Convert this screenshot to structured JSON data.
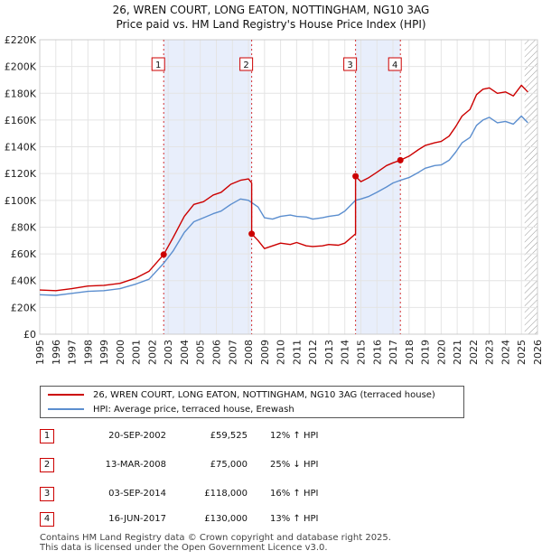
{
  "chart_data": {
    "type": "line",
    "title": "26, WREN COURT, LONG EATON, NOTTINGHAM, NG10 3AG",
    "subtitle": "Price paid vs. HM Land Registry's House Price Index (HPI)",
    "xlabel": "",
    "ylabel": "",
    "xlim": [
      1995,
      2026
    ],
    "ylim": [
      0,
      220000
    ],
    "y_ticks": [
      0,
      20000,
      40000,
      60000,
      80000,
      100000,
      120000,
      140000,
      160000,
      180000,
      200000,
      220000
    ],
    "y_tick_labels": [
      "£0",
      "£20K",
      "£40K",
      "£60K",
      "£80K",
      "£100K",
      "£120K",
      "£140K",
      "£160K",
      "£180K",
      "£200K",
      "£220K"
    ],
    "x_ticks": [
      1995,
      1996,
      1997,
      1998,
      1999,
      2000,
      2001,
      2002,
      2003,
      2004,
      2005,
      2006,
      2007,
      2008,
      2009,
      2010,
      2011,
      2012,
      2013,
      2014,
      2015,
      2016,
      2017,
      2018,
      2019,
      2020,
      2021,
      2022,
      2023,
      2024,
      2025,
      2026
    ],
    "x_tick_labels": [
      "1995",
      "1996",
      "1997",
      "1998",
      "1999",
      "2000",
      "2001",
      "2002",
      "2003",
      "2004",
      "2005",
      "2006",
      "2007",
      "2008",
      "2009",
      "2010",
      "2011",
      "2012",
      "2013",
      "2014",
      "2015",
      "2016",
      "2017",
      "2018",
      "2019",
      "2020",
      "2021",
      "2022",
      "2023",
      "2024",
      "2025",
      "2026"
    ],
    "grid": true,
    "colors": {
      "property": "#cc0000",
      "hpi": "#5b8ecf",
      "shade": "#e8eefb",
      "hatch": "#999999"
    },
    "shaded_ranges": [
      [
        2002.72,
        2008.2
      ],
      [
        2014.67,
        2017.46
      ]
    ],
    "future_hatch_from": 2025.2,
    "series": [
      {
        "name": "26, WREN COURT, LONG EATON, NOTTINGHAM, NG10 3AG (terraced house)",
        "color": "#cc0000",
        "points": [
          [
            1995.0,
            33000
          ],
          [
            1996.0,
            32500
          ],
          [
            1997.0,
            34000
          ],
          [
            1998.0,
            36000
          ],
          [
            1999.0,
            36500
          ],
          [
            2000.0,
            38000
          ],
          [
            2001.0,
            42000
          ],
          [
            2001.8,
            47000
          ],
          [
            2002.72,
            59525
          ],
          [
            2003.3,
            72000
          ],
          [
            2004.0,
            88000
          ],
          [
            2004.6,
            97000
          ],
          [
            2005.2,
            99000
          ],
          [
            2005.8,
            104000
          ],
          [
            2006.3,
            106000
          ],
          [
            2006.9,
            112000
          ],
          [
            2007.5,
            115000
          ],
          [
            2008.0,
            116000
          ],
          [
            2008.2,
            113000
          ],
          [
            2008.2,
            75000
          ],
          [
            2008.6,
            70000
          ],
          [
            2009.0,
            64000
          ],
          [
            2009.5,
            66000
          ],
          [
            2010.0,
            68000
          ],
          [
            2010.6,
            67000
          ],
          [
            2011.0,
            68500
          ],
          [
            2011.6,
            66000
          ],
          [
            2012.0,
            65500
          ],
          [
            2012.6,
            66000
          ],
          [
            2013.0,
            67000
          ],
          [
            2013.6,
            66500
          ],
          [
            2014.0,
            68000
          ],
          [
            2014.67,
            75000
          ],
          [
            2014.67,
            118000
          ],
          [
            2015.0,
            114000
          ],
          [
            2015.5,
            117000
          ],
          [
            2016.0,
            121000
          ],
          [
            2016.6,
            126000
          ],
          [
            2017.0,
            128000
          ],
          [
            2017.46,
            130000
          ],
          [
            2018.0,
            133000
          ],
          [
            2018.6,
            138000
          ],
          [
            2019.0,
            141000
          ],
          [
            2019.6,
            143000
          ],
          [
            2020.0,
            144000
          ],
          [
            2020.5,
            148000
          ],
          [
            2020.9,
            155000
          ],
          [
            2021.3,
            163000
          ],
          [
            2021.8,
            168000
          ],
          [
            2022.2,
            179000
          ],
          [
            2022.6,
            183000
          ],
          [
            2023.0,
            184000
          ],
          [
            2023.5,
            180000
          ],
          [
            2024.0,
            181000
          ],
          [
            2024.5,
            178000
          ],
          [
            2025.0,
            186000
          ],
          [
            2025.4,
            181000
          ]
        ]
      },
      {
        "name": "HPI: Average price, terraced house, Erewash",
        "color": "#5b8ecf",
        "points": [
          [
            1995.0,
            29500
          ],
          [
            1996.0,
            29000
          ],
          [
            1997.0,
            30500
          ],
          [
            1998.0,
            32000
          ],
          [
            1999.0,
            32500
          ],
          [
            2000.0,
            34000
          ],
          [
            2001.0,
            37500
          ],
          [
            2001.8,
            41000
          ],
          [
            2002.72,
            53000
          ],
          [
            2003.3,
            62000
          ],
          [
            2004.0,
            76000
          ],
          [
            2004.6,
            84000
          ],
          [
            2005.2,
            87000
          ],
          [
            2005.8,
            90000
          ],
          [
            2006.3,
            92000
          ],
          [
            2006.9,
            97000
          ],
          [
            2007.5,
            101000
          ],
          [
            2008.0,
            100000
          ],
          [
            2008.6,
            95000
          ],
          [
            2009.0,
            87000
          ],
          [
            2009.5,
            86000
          ],
          [
            2010.0,
            88000
          ],
          [
            2010.6,
            89000
          ],
          [
            2011.0,
            88000
          ],
          [
            2011.6,
            87500
          ],
          [
            2012.0,
            86000
          ],
          [
            2012.6,
            87000
          ],
          [
            2013.0,
            88000
          ],
          [
            2013.6,
            89000
          ],
          [
            2014.0,
            92000
          ],
          [
            2014.67,
            100000
          ],
          [
            2015.0,
            101000
          ],
          [
            2015.5,
            103000
          ],
          [
            2016.0,
            106000
          ],
          [
            2016.6,
            110000
          ],
          [
            2017.0,
            113000
          ],
          [
            2017.46,
            115000
          ],
          [
            2018.0,
            117000
          ],
          [
            2018.6,
            121000
          ],
          [
            2019.0,
            124000
          ],
          [
            2019.6,
            126000
          ],
          [
            2020.0,
            126500
          ],
          [
            2020.5,
            130000
          ],
          [
            2020.9,
            136000
          ],
          [
            2021.3,
            143000
          ],
          [
            2021.8,
            147000
          ],
          [
            2022.2,
            156000
          ],
          [
            2022.6,
            160000
          ],
          [
            2023.0,
            162000
          ],
          [
            2023.5,
            158000
          ],
          [
            2024.0,
            159000
          ],
          [
            2024.5,
            157000
          ],
          [
            2025.0,
            163000
          ],
          [
            2025.4,
            158000
          ]
        ]
      }
    ],
    "transactions": [
      {
        "num": "1",
        "x": 2002.72,
        "y": 59525,
        "date": "20-SEP-2002",
        "price": "£59,525",
        "hpi": "12% ↑ HPI"
      },
      {
        "num": "2",
        "x": 2008.2,
        "y": 75000,
        "date": "13-MAR-2008",
        "price": "£75,000",
        "hpi": "25% ↓ HPI"
      },
      {
        "num": "3",
        "x": 2014.67,
        "y": 118000,
        "date": "03-SEP-2014",
        "price": "£118,000",
        "hpi": "16% ↑ HPI"
      },
      {
        "num": "4",
        "x": 2017.46,
        "y": 130000,
        "date": "16-JUN-2017",
        "price": "£130,000",
        "hpi": "13% ↑ HPI"
      }
    ]
  },
  "legend": {
    "property": "26, WREN COURT, LONG EATON, NOTTINGHAM, NG10 3AG (terraced house)",
    "hpi": "HPI: Average price, terraced house, Erewash"
  },
  "footer": {
    "line1": "Contains HM Land Registry data © Crown copyright and database right 2025.",
    "line2": "This data is licensed under the Open Government Licence v3.0."
  }
}
